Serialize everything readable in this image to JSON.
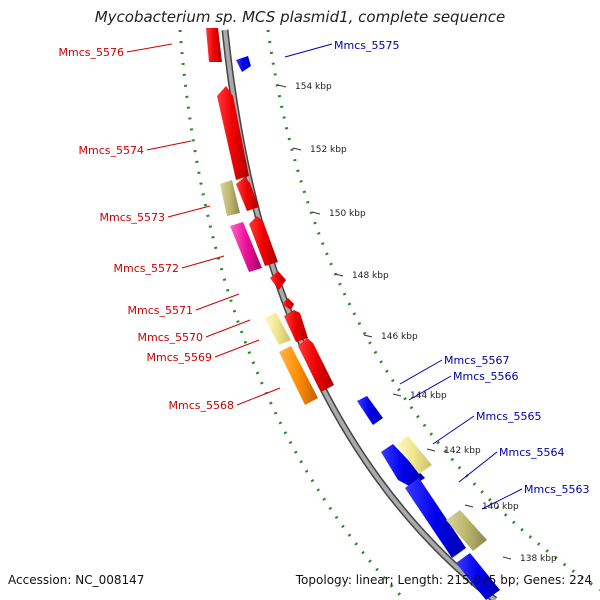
{
  "title": "Mycobacterium sp. MCS plasmid1, complete sequence",
  "footer": {
    "accession": "Accession: NC_008147",
    "summary": "Topology: linear; Length: 215,075 bp; Genes: 224"
  },
  "colors": {
    "forward_label": "#cc0000",
    "reverse_label": "#0000aa",
    "backbone": "#888888",
    "gc_dots": "#228B22"
  },
  "ticks": [
    "154 kbp",
    "152 kbp",
    "150 kbp",
    "148 kbp",
    "146 kbp",
    "144 kbp",
    "142 kbp",
    "140 kbp",
    "138 kbp"
  ],
  "labels_forward": [
    "Mmcs_5576",
    "Mmcs_5574",
    "Mmcs_5573",
    "Mmcs_5572",
    "Mmcs_5571",
    "Mmcs_5570",
    "Mmcs_5569",
    "Mmcs_5568"
  ],
  "labels_reverse": [
    "Mmcs_5575",
    "Mmcs_5567",
    "Mmcs_5566",
    "Mmcs_5565",
    "Mmcs_5564",
    "Mmcs_5563"
  ]
}
